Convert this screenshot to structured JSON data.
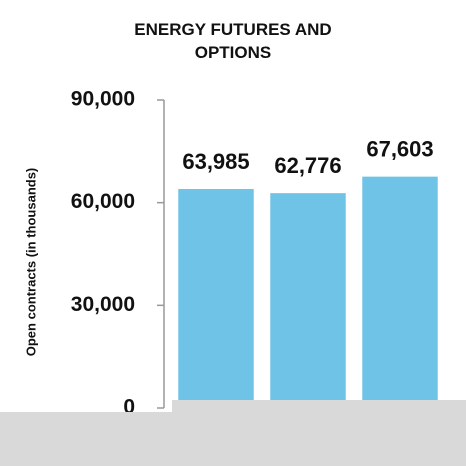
{
  "chart_data": {
    "type": "bar",
    "title": "ENERGY FUTURES AND OPTIONS",
    "y_label": "Open contracts (in thousands)",
    "categories": [
      null,
      null,
      null
    ],
    "values": [
      63985,
      62776,
      67603
    ],
    "value_labels": [
      "63,985",
      "62,776",
      "67,603"
    ],
    "color": "#6ec3e6",
    "ylim": [
      0,
      90000
    ],
    "yticks": [
      0,
      {
        "value": 30000,
        "label": "30,000"
      },
      {
        "value": 60000,
        "label": "60,000"
      },
      {
        "value": 90000,
        "label": "90,000"
      }
    ],
    "grid": false
  }
}
